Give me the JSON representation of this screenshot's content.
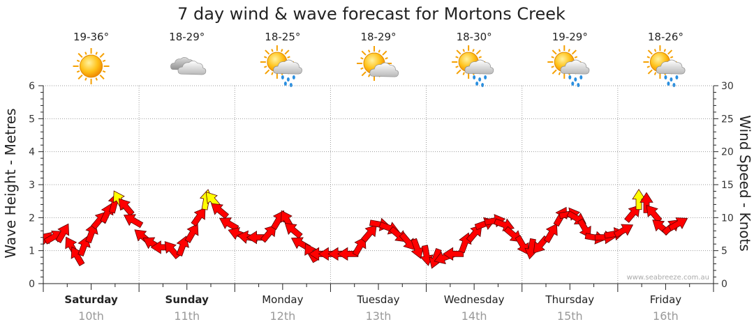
{
  "chart_data": {
    "type": "line",
    "title": "7 day wind & wave forecast for Mortons Creek",
    "ylabel_left": "Wave Height - Metres",
    "ylabel_right": "Wind Speed - Knots",
    "ylim_left": [
      0,
      6
    ],
    "ylim_right": [
      0,
      30
    ],
    "left_ticks": [
      "0",
      "1",
      "2",
      "3",
      "4",
      "5",
      "6"
    ],
    "right_ticks": [
      "0",
      "5",
      "10",
      "15",
      "20",
      "25",
      "30"
    ],
    "watermark": "www.seabreeze.com.au",
    "days": [
      {
        "name": "Saturday",
        "date": "10th",
        "temp": "19-36°",
        "icon": "sun-icon",
        "bold": true
      },
      {
        "name": "Sunday",
        "date": "11th",
        "temp": "18-29°",
        "icon": "cloud-icon",
        "bold": true
      },
      {
        "name": "Monday",
        "date": "12th",
        "temp": "18-25°",
        "icon": "sun-cloud-rain-icon",
        "bold": false
      },
      {
        "name": "Tuesday",
        "date": "13th",
        "temp": "18-29°",
        "icon": "sun-cloud-icon",
        "bold": false
      },
      {
        "name": "Wednesday",
        "date": "14th",
        "temp": "18-30°",
        "icon": "sun-cloud-rain-icon",
        "bold": false
      },
      {
        "name": "Thursday",
        "date": "15th",
        "temp": "19-29°",
        "icon": "sun-cloud-rain-icon",
        "bold": false
      },
      {
        "name": "Friday",
        "date": "16th",
        "temp": "18-26°",
        "icon": "sun-cloud-rain-icon",
        "bold": false
      }
    ],
    "series": [
      {
        "name": "",
        "unit": "knots",
        "color": "#ff0000",
        "highlight_color": "#ffff00",
        "highlight_above_knots": 12.5,
        "points": [
          {
            "t": 0.0,
            "v": 6.5,
            "dir": 45
          },
          {
            "t": 0.1,
            "v": 7.0,
            "dir": 60
          },
          {
            "t": 0.2,
            "v": 7.5,
            "dir": 30
          },
          {
            "t": 0.3,
            "v": 5.5,
            "dir": 330
          },
          {
            "t": 0.36,
            "v": 4.0,
            "dir": 330
          },
          {
            "t": 0.42,
            "v": 5.5,
            "dir": 20
          },
          {
            "t": 0.5,
            "v": 7.5,
            "dir": 20
          },
          {
            "t": 0.58,
            "v": 9.5,
            "dir": 40
          },
          {
            "t": 0.66,
            "v": 10.5,
            "dir": 25
          },
          {
            "t": 0.74,
            "v": 12.0,
            "dir": 15
          },
          {
            "t": 0.8,
            "v": 12.5,
            "dir": 330
          },
          {
            "t": 0.87,
            "v": 11.5,
            "dir": 320
          },
          {
            "t": 0.95,
            "v": 9.5,
            "dir": 300
          },
          {
            "t": 1.05,
            "v": 7.0,
            "dir": 310
          },
          {
            "t": 1.15,
            "v": 6.0,
            "dir": 300
          },
          {
            "t": 1.25,
            "v": 5.5,
            "dir": 270
          },
          {
            "t": 1.35,
            "v": 5.0,
            "dir": 320
          },
          {
            "t": 1.45,
            "v": 5.5,
            "dir": 20
          },
          {
            "t": 1.55,
            "v": 7.5,
            "dir": 30
          },
          {
            "t": 1.62,
            "v": 10.0,
            "dir": 35
          },
          {
            "t": 1.7,
            "v": 12.5,
            "dir": 10
          },
          {
            "t": 1.78,
            "v": 12.5,
            "dir": 320
          },
          {
            "t": 1.85,
            "v": 11.0,
            "dir": 310
          },
          {
            "t": 1.95,
            "v": 9.0,
            "dir": 300
          },
          {
            "t": 2.05,
            "v": 7.5,
            "dir": 290
          },
          {
            "t": 2.15,
            "v": 7.0,
            "dir": 280
          },
          {
            "t": 2.25,
            "v": 7.0,
            "dir": 270
          },
          {
            "t": 2.35,
            "v": 7.5,
            "dir": 40
          },
          {
            "t": 2.45,
            "v": 9.5,
            "dir": 30
          },
          {
            "t": 2.55,
            "v": 9.5,
            "dir": 330
          },
          {
            "t": 2.62,
            "v": 8.0,
            "dir": 310
          },
          {
            "t": 2.7,
            "v": 6.0,
            "dir": 300
          },
          {
            "t": 2.8,
            "v": 4.5,
            "dir": 330
          },
          {
            "t": 2.9,
            "v": 4.5,
            "dir": 270
          },
          {
            "t": 3.0,
            "v": 4.5,
            "dir": 270
          },
          {
            "t": 3.1,
            "v": 4.5,
            "dir": 270
          },
          {
            "t": 3.2,
            "v": 4.5,
            "dir": 270
          },
          {
            "t": 3.3,
            "v": 5.5,
            "dir": 30
          },
          {
            "t": 3.4,
            "v": 7.5,
            "dir": 40
          },
          {
            "t": 3.5,
            "v": 9.0,
            "dir": 100
          },
          {
            "t": 3.6,
            "v": 8.5,
            "dir": 110
          },
          {
            "t": 3.7,
            "v": 7.5,
            "dir": 130
          },
          {
            "t": 3.8,
            "v": 6.5,
            "dir": 140
          },
          {
            "t": 3.9,
            "v": 5.5,
            "dir": 160
          },
          {
            "t": 4.0,
            "v": 4.5,
            "dir": 170
          },
          {
            "t": 4.1,
            "v": 4.0,
            "dir": 200
          },
          {
            "t": 4.2,
            "v": 4.0,
            "dir": 250
          },
          {
            "t": 4.3,
            "v": 4.5,
            "dir": 270
          },
          {
            "t": 4.4,
            "v": 6.0,
            "dir": 20
          },
          {
            "t": 4.5,
            "v": 7.5,
            "dir": 40
          },
          {
            "t": 4.6,
            "v": 9.0,
            "dir": 70
          },
          {
            "t": 4.7,
            "v": 9.5,
            "dir": 80
          },
          {
            "t": 4.8,
            "v": 9.0,
            "dir": 110
          },
          {
            "t": 4.9,
            "v": 7.5,
            "dir": 130
          },
          {
            "t": 5.0,
            "v": 6.0,
            "dir": 150
          },
          {
            "t": 5.1,
            "v": 5.5,
            "dir": 190
          },
          {
            "t": 5.2,
            "v": 6.0,
            "dir": 220
          },
          {
            "t": 5.3,
            "v": 7.5,
            "dir": 30
          },
          {
            "t": 5.4,
            "v": 10.0,
            "dir": 30
          },
          {
            "t": 5.48,
            "v": 10.5,
            "dir": 80
          },
          {
            "t": 5.56,
            "v": 10.0,
            "dir": 120
          },
          {
            "t": 5.65,
            "v": 8.5,
            "dir": 150
          },
          {
            "t": 5.75,
            "v": 7.0,
            "dir": 100
          },
          {
            "t": 5.85,
            "v": 7.0,
            "dir": 90
          },
          {
            "t": 5.95,
            "v": 7.5,
            "dir": 80
          },
          {
            "t": 6.05,
            "v": 8.0,
            "dir": 60
          },
          {
            "t": 6.15,
            "v": 10.5,
            "dir": 40
          },
          {
            "t": 6.22,
            "v": 12.5,
            "dir": 0
          },
          {
            "t": 6.3,
            "v": 12.0,
            "dir": 0
          },
          {
            "t": 6.38,
            "v": 10.5,
            "dir": 320
          },
          {
            "t": 6.46,
            "v": 8.5,
            "dir": 310
          },
          {
            "t": 6.55,
            "v": 8.5,
            "dir": 50
          },
          {
            "t": 6.62,
            "v": 9.0,
            "dir": 60
          }
        ]
      }
    ]
  }
}
